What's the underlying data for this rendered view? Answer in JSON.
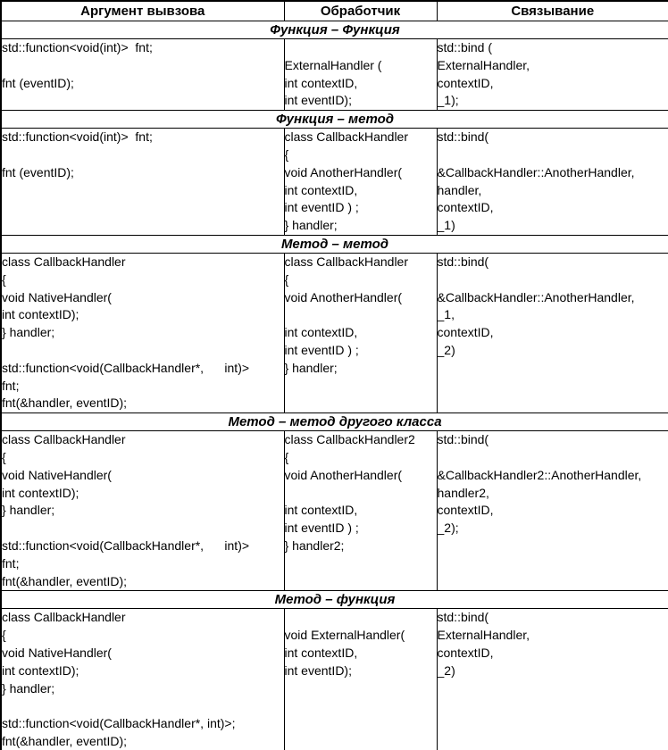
{
  "colors": {
    "background": "#ffffff",
    "border": "#000000",
    "text": "#000000"
  },
  "document": {
    "columns": [
      "Аргумент вывзова",
      "Обработчик",
      "Связывание"
    ],
    "sections": [
      {
        "title": "Функция – Функция",
        "argument": [
          "std::function<void(int)>  fnt;",
          "",
          "fnt (eventID);",
          ""
        ],
        "handler": [
          "",
          "ExternalHandler (",
          "int contextID,",
          "int eventID);"
        ],
        "binding": [
          "std::bind (",
          "ExternalHandler,",
          "contextID,",
          "_1);"
        ]
      },
      {
        "title": "Функция – метод",
        "argument": [
          "std::function<void(int)>  fnt;",
          "",
          "fnt (eventID);",
          "",
          "",
          ""
        ],
        "handler": [
          "class CallbackHandler",
          "{",
          "void AnotherHandler(",
          "int contextID,",
          "int eventID ) ;",
          "} handler;"
        ],
        "binding": [
          "std::bind(",
          "",
          "&CallbackHandler::AnotherHandler,",
          "handler,",
          "contextID,",
          "_1)"
        ]
      },
      {
        "title": "Метод – метод",
        "argument": [
          "class CallbackHandler",
          "{",
          "void NativeHandler(",
          "int contextID);",
          "} handler;",
          "",
          "std::function<void(CallbackHandler*,      int)>",
          "fnt;",
          "fnt(&handler, eventID);"
        ],
        "handler": [
          "class CallbackHandler",
          "{",
          "void AnotherHandler(",
          "",
          "int contextID,",
          "int eventID ) ;",
          "} handler;",
          "",
          ""
        ],
        "binding": [
          "std::bind(",
          "",
          "&CallbackHandler::AnotherHandler,",
          "_1,",
          "contextID,",
          "_2)",
          "",
          "",
          ""
        ]
      },
      {
        "title": "Метод – метод другого класса",
        "argument": [
          "class CallbackHandler",
          "{",
          "void NativeHandler(",
          "int contextID);",
          "} handler;",
          "",
          "std::function<void(CallbackHandler*,      int)>",
          "fnt;",
          "fnt(&handler, eventID);"
        ],
        "handler": [
          "class CallbackHandler2",
          "{",
          "void AnotherHandler(",
          "",
          "int contextID,",
          "int eventID ) ;",
          "} handler2;",
          "",
          ""
        ],
        "binding": [
          "std::bind(",
          "",
          "&CallbackHandler2::AnotherHandler,",
          "handler2,",
          "contextID,",
          "_2);",
          "",
          "",
          ""
        ]
      },
      {
        "title": "Метод – функция",
        "argument": [
          "class CallbackHandler",
          "{",
          "void NativeHandler(",
          "int contextID);",
          "} handler;",
          "",
          "std::function<void(CallbackHandler*, int)>;",
          "fnt(&handler, eventID);"
        ],
        "handler": [
          "",
          "void ExternalHandler(",
          "int contextID,",
          "int eventID);",
          "",
          "",
          "",
          ""
        ],
        "binding": [
          "std::bind(",
          "ExternalHandler,",
          "contextID,",
          "_2)",
          "",
          "",
          "",
          ""
        ]
      }
    ]
  }
}
